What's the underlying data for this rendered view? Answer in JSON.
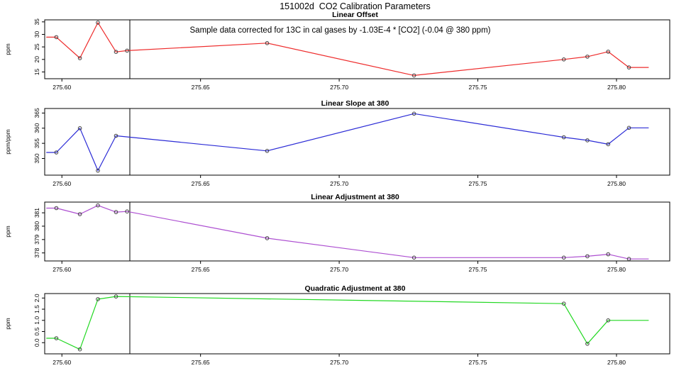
{
  "figure": {
    "title": "151002d  CO2 Calibration Parameters"
  },
  "chart_data": [
    {
      "id": "linear-offset",
      "type": "line",
      "title": "Linear Offset",
      "ylabel": "ppm",
      "line_color": "#ee2c2c",
      "marker_color": "#404040",
      "annotation": "Sample data corrected for 13C in cal gases by -1.03E-4 * [CO2] (-0.04 @ 380 ppm)",
      "x": [
        275.598,
        275.6065,
        275.613,
        275.6195,
        275.6235,
        275.674,
        275.727,
        275.781,
        275.7895,
        275.797,
        275.8045
      ],
      "y": [
        28.9,
        20.5,
        34.7,
        23.0,
        23.5,
        26.5,
        13.6,
        20.0,
        21.1,
        23.1,
        16.8
      ],
      "lead_x": 275.5945,
      "tail_x": 275.8115,
      "xlim": [
        275.5938,
        275.8192
      ],
      "ylim": [
        12.3,
        35.8
      ],
      "xticks": [
        275.6,
        275.65,
        275.7,
        275.75,
        275.8
      ],
      "xtick_labels": [
        "275.60",
        "275.65",
        "275.70",
        "275.75",
        "275.80"
      ],
      "yticks": [
        15,
        20,
        25,
        30,
        35
      ],
      "ytick_labels": [
        "15",
        "20",
        "25",
        "30",
        "35"
      ],
      "vline_x": 275.6245,
      "grid": false,
      "legend": "none"
    },
    {
      "id": "linear-slope-at-380",
      "type": "line",
      "title": "Linear Slope at 380",
      "ylabel": "ppm/ppm",
      "line_color": "#2b2bd6",
      "marker_color": "#404040",
      "annotation": "",
      "x": [
        275.598,
        275.6065,
        275.613,
        275.6195,
        275.674,
        275.727,
        275.781,
        275.7895,
        275.797,
        275.8045
      ],
      "y": [
        352.0,
        360.0,
        346.0,
        357.5,
        352.5,
        364.8,
        357.0,
        356.0,
        354.7,
        360.1
      ],
      "lead_x": 275.5945,
      "tail_x": 275.8115,
      "xlim": [
        275.5938,
        275.8192
      ],
      "ylim": [
        344.5,
        366.5
      ],
      "xticks": [
        275.6,
        275.65,
        275.7,
        275.75,
        275.8
      ],
      "xtick_labels": [
        "275.60",
        "275.65",
        "275.70",
        "275.75",
        "275.80"
      ],
      "yticks": [
        350,
        355,
        360,
        365
      ],
      "ytick_labels": [
        "350",
        "355",
        "360",
        "365"
      ],
      "vline_x": 275.6245,
      "grid": false,
      "legend": "none"
    },
    {
      "id": "linear-adjustment-at-380",
      "type": "line",
      "title": "Linear Adjustment at 380",
      "ylabel": "ppm",
      "line_color": "#ad4fd1",
      "marker_color": "#404040",
      "annotation": "",
      "x": [
        275.598,
        275.6065,
        275.613,
        275.6195,
        275.6235,
        275.674,
        275.727,
        275.781,
        275.7895,
        275.797,
        275.8045
      ],
      "y": [
        381.35,
        380.9,
        381.55,
        381.05,
        381.1,
        379.1,
        377.65,
        377.65,
        377.75,
        377.9,
        377.55
      ],
      "lead_x": 275.5945,
      "tail_x": 275.8115,
      "xlim": [
        275.5938,
        275.8192
      ],
      "ylim": [
        377.4,
        381.8
      ],
      "xticks": [
        275.6,
        275.65,
        275.7,
        275.75,
        275.8
      ],
      "xtick_labels": [
        "275.60",
        "275.65",
        "275.70",
        "275.75",
        "275.80"
      ],
      "yticks": [
        378,
        379,
        380,
        381
      ],
      "ytick_labels": [
        "378",
        "379",
        "380",
        "381"
      ],
      "vline_x": 275.6245,
      "grid": false,
      "legend": "none"
    },
    {
      "id": "quadratic-adjustment-at-380",
      "type": "line",
      "title": "Quadratic Adjustment at 380",
      "ylabel": "ppm",
      "line_color": "#22d822",
      "marker_color": "#404040",
      "annotation": "",
      "x": [
        275.598,
        275.6065,
        275.613,
        275.6195,
        275.781,
        275.7895,
        275.797
      ],
      "y": [
        0.2,
        -0.3,
        1.95,
        2.07,
        1.75,
        -0.05,
        1.0
      ],
      "lead_x": 275.5945,
      "tail_x": 275.8115,
      "xlim": [
        275.5938,
        275.8192
      ],
      "ylim": [
        -0.5,
        2.2
      ],
      "xticks": [
        275.6,
        275.65,
        275.7,
        275.75,
        275.8
      ],
      "xtick_labels": [
        "275.60",
        "275.65",
        "275.70",
        "275.75",
        "275.80"
      ],
      "yticks": [
        0.0,
        0.5,
        1.0,
        1.5,
        2.0
      ],
      "ytick_labels": [
        "0.0",
        "0.5",
        "1.0",
        "1.5",
        "2.0"
      ],
      "vline_x": 275.6245,
      "grid": false,
      "legend": "none"
    }
  ]
}
